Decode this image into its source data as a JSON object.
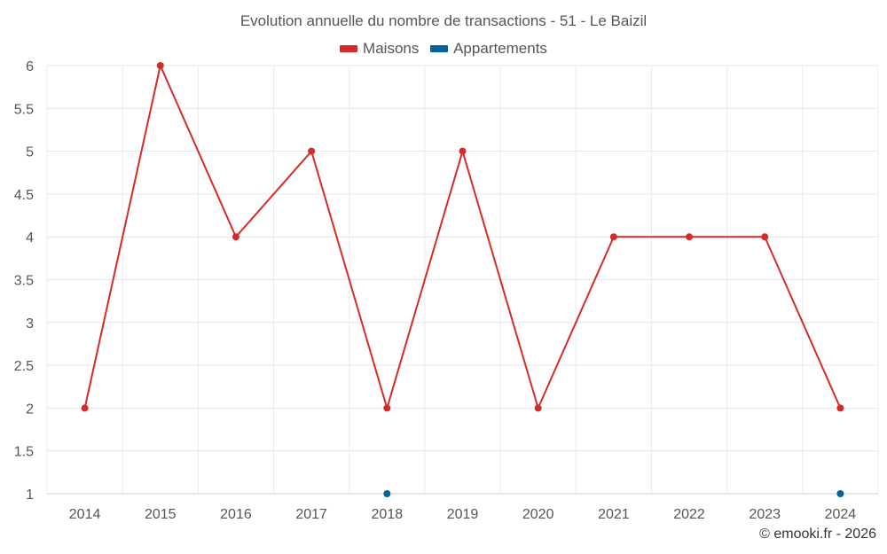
{
  "chart_data": {
    "type": "line",
    "title": "Evolution annuelle du nombre de transactions - 51 - Le Baizil",
    "categories": [
      "2014",
      "2015",
      "2016",
      "2017",
      "2018",
      "2019",
      "2020",
      "2021",
      "2022",
      "2023",
      "2024"
    ],
    "series": [
      {
        "name": "Maisons",
        "color": "#d42a2a",
        "values": [
          2,
          6,
          4,
          5,
          2,
          5,
          2,
          4,
          4,
          4,
          2
        ]
      },
      {
        "name": "Appartements",
        "color": "#07629a",
        "values": [
          null,
          null,
          null,
          null,
          1,
          null,
          null,
          null,
          null,
          null,
          1
        ]
      }
    ],
    "yticks": [
      "1",
      "1.5",
      "2",
      "2.5",
      "3",
      "3.5",
      "4",
      "4.5",
      "5",
      "5.5",
      "6"
    ],
    "ylim": [
      1,
      6
    ],
    "grid": true,
    "legend_position": "top-center",
    "xlabel": "",
    "ylabel": ""
  },
  "credit": "© emooki.fr - 2026"
}
